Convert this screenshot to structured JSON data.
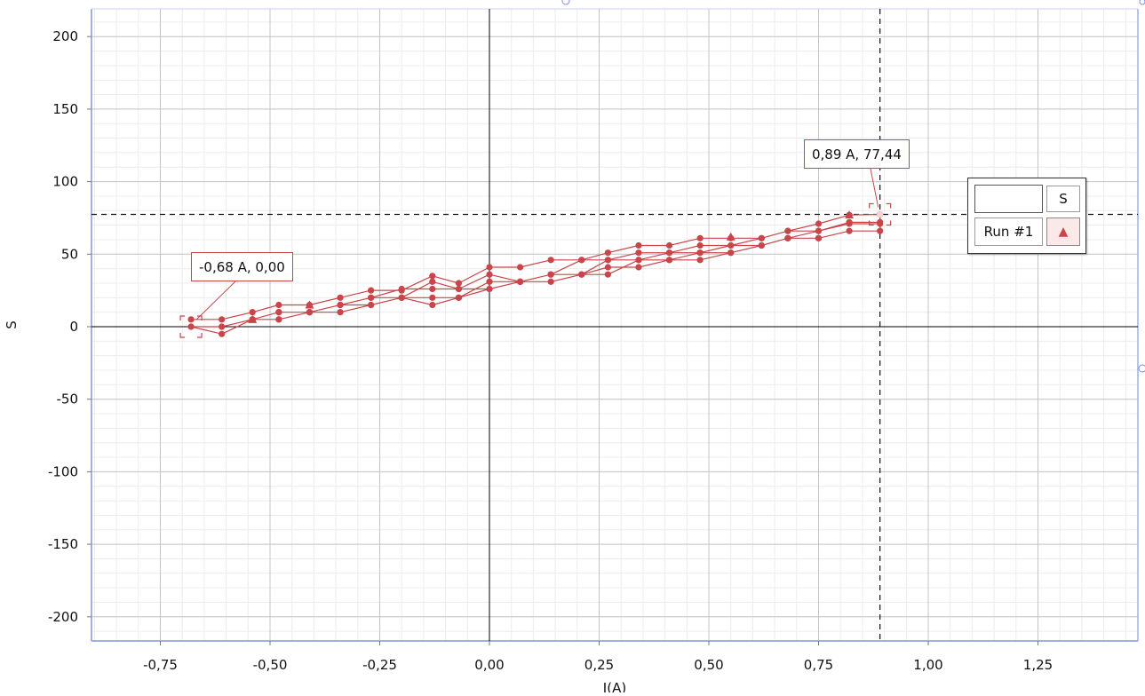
{
  "chart_data": {
    "type": "scatter",
    "xlabel": "I(A)",
    "ylabel": "S",
    "xlim": [
      -0.9,
      1.48
    ],
    "ylim": [
      -215,
      220
    ],
    "x_ticks": [
      "-0,75",
      "-0,50",
      "-0,25",
      "0,00",
      "0,25",
      "0,50",
      "0,75",
      "1,00",
      "1,25"
    ],
    "x_tick_values": [
      -0.75,
      -0.5,
      -0.25,
      0,
      0.25,
      0.5,
      0.75,
      1.0,
      1.25
    ],
    "y_ticks": [
      "200",
      "150",
      "100",
      "50",
      "0",
      "-50",
      "-100",
      "-150",
      "-200"
    ],
    "y_tick_values": [
      200,
      150,
      100,
      50,
      0,
      -50,
      -100,
      -150,
      -200
    ],
    "grid": true,
    "legend_position": "right",
    "series": [
      {
        "name": "Run #1",
        "color": "#c8454a",
        "marker": "triangle",
        "points": [
          [
            -0.68,
            5
          ],
          [
            -0.61,
            5
          ],
          [
            -0.54,
            10
          ],
          [
            -0.48,
            15
          ],
          [
            -0.41,
            15
          ],
          [
            -0.34,
            20
          ],
          [
            -0.27,
            25
          ],
          [
            -0.2,
            25
          ],
          [
            -0.13,
            35
          ],
          [
            -0.07,
            30
          ],
          [
            0.0,
            41
          ],
          [
            0.07,
            41
          ],
          [
            0.14,
            46
          ],
          [
            0.21,
            46
          ],
          [
            0.27,
            51
          ],
          [
            0.34,
            56
          ],
          [
            0.41,
            56
          ],
          [
            0.48,
            61
          ],
          [
            0.55,
            61
          ],
          [
            0.62,
            61
          ],
          [
            0.68,
            66
          ],
          [
            0.75,
            71
          ],
          [
            0.82,
            77
          ],
          [
            0.89,
            77.44
          ],
          [
            0.89,
            71
          ],
          [
            0.82,
            71
          ],
          [
            0.75,
            66
          ],
          [
            0.68,
            61
          ],
          [
            0.62,
            56
          ],
          [
            0.55,
            56
          ],
          [
            0.48,
            51
          ],
          [
            0.41,
            51
          ],
          [
            0.34,
            46
          ],
          [
            0.27,
            46
          ],
          [
            0.21,
            36
          ],
          [
            0.14,
            36
          ],
          [
            0.07,
            31
          ],
          [
            0.0,
            36
          ],
          [
            -0.07,
            26
          ],
          [
            -0.13,
            31
          ],
          [
            -0.2,
            20
          ],
          [
            -0.27,
            20
          ],
          [
            -0.34,
            15
          ],
          [
            -0.41,
            10
          ],
          [
            -0.48,
            10
          ],
          [
            -0.54,
            5
          ],
          [
            -0.61,
            0
          ],
          [
            -0.68,
            0
          ],
          [
            -0.61,
            -5
          ],
          [
            -0.54,
            5
          ],
          [
            -0.48,
            5
          ],
          [
            -0.41,
            10
          ],
          [
            -0.34,
            10
          ],
          [
            -0.27,
            15
          ],
          [
            -0.2,
            20
          ],
          [
            -0.13,
            20
          ],
          [
            -0.07,
            20
          ],
          [
            0.0,
            31
          ],
          [
            0.07,
            31
          ],
          [
            0.14,
            31
          ],
          [
            0.21,
            36
          ],
          [
            0.27,
            41
          ],
          [
            0.34,
            41
          ],
          [
            0.41,
            46
          ],
          [
            0.48,
            46
          ],
          [
            0.55,
            51
          ],
          [
            0.62,
            56
          ],
          [
            0.68,
            61
          ],
          [
            0.75,
            61
          ],
          [
            0.82,
            66
          ],
          [
            0.89,
            66
          ],
          [
            0.89,
            72
          ],
          [
            0.82,
            72
          ],
          [
            0.75,
            66
          ],
          [
            0.68,
            66
          ],
          [
            0.62,
            61
          ],
          [
            0.55,
            56
          ],
          [
            0.48,
            56
          ],
          [
            0.41,
            51
          ],
          [
            0.34,
            51
          ],
          [
            0.27,
            46
          ],
          [
            0.21,
            46
          ],
          [
            0.14,
            36
          ],
          [
            0.07,
            31
          ],
          [
            0.0,
            26
          ],
          [
            -0.07,
            26
          ],
          [
            -0.13,
            26
          ],
          [
            -0.2,
            26
          ],
          [
            -0.27,
            20
          ],
          [
            -0.34,
            15
          ],
          [
            -0.41,
            10
          ],
          [
            -0.48,
            10
          ],
          [
            -0.54,
            5
          ],
          [
            -0.61,
            0
          ],
          [
            -0.54,
            5
          ],
          [
            -0.48,
            5
          ],
          [
            -0.41,
            10
          ],
          [
            -0.34,
            15
          ],
          [
            -0.27,
            15
          ],
          [
            -0.2,
            20
          ],
          [
            -0.13,
            15
          ],
          [
            -0.07,
            20
          ],
          [
            0.0,
            26
          ],
          [
            0.07,
            31
          ],
          [
            0.14,
            36
          ],
          [
            0.21,
            36
          ],
          [
            0.27,
            36
          ],
          [
            0.34,
            46
          ],
          [
            0.41,
            46
          ],
          [
            0.48,
            51
          ],
          [
            0.55,
            51
          ],
          [
            0.62,
            56
          ],
          [
            0.68,
            61
          ],
          [
            0.75,
            61
          ]
        ]
      }
    ],
    "triangle_points": [
      [
        0.82,
        77
      ],
      [
        0.55,
        62
      ],
      [
        -0.41,
        15
      ],
      [
        -0.54,
        5
      ]
    ],
    "crosshair": {
      "x": 0.89,
      "y": 77.44
    },
    "annotations": [
      {
        "text": "0,89 A, 77,44",
        "x": 0.89,
        "y": 77.44
      },
      {
        "text": "-0,68 A, 0,00",
        "x": -0.68,
        "y": 0.0
      }
    ]
  },
  "legend": {
    "header_value": "",
    "header_s": "S",
    "run_label": "Run #1",
    "symbol": "▲"
  }
}
